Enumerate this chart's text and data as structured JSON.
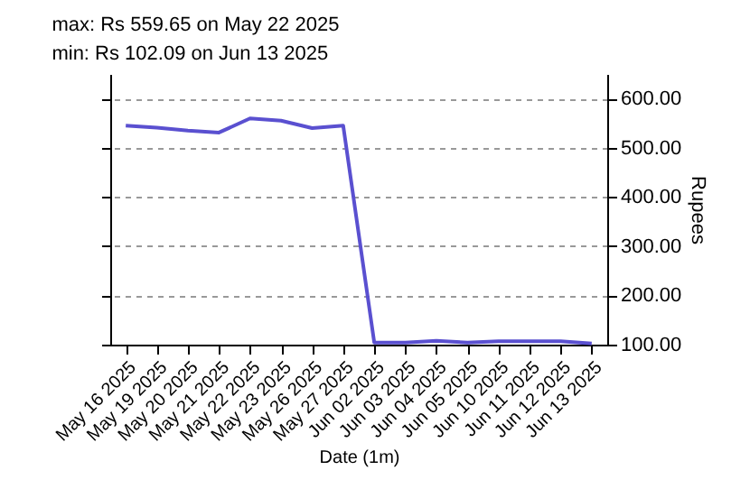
{
  "chart_data": {
    "type": "line",
    "title": "max: Rs 559.65 on May 22 2025",
    "subtitle": "min: Rs 102.09 on Jun 13 2025",
    "xlabel": "Date (1m)",
    "ylabel": "Rupees",
    "categories": [
      "May 16 2025",
      "May 19 2025",
      "May 20 2025",
      "May 21 2025",
      "May 22 2025",
      "May 23 2025",
      "May 26 2025",
      "May 27 2025",
      "Jun 02 2025",
      "Jun 03 2025",
      "Jun 04 2025",
      "Jun 05 2025",
      "Jun 10 2025",
      "Jun 11 2025",
      "Jun 12 2025",
      "Jun 13 2025"
    ],
    "series": [
      {
        "color": "#5a50d0",
        "values": [
          545,
          541,
          535,
          531,
          559.65,
          555,
          540,
          545,
          104,
          104,
          108,
          104,
          107,
          107,
          107,
          102.09
        ]
      }
    ],
    "ylim": [
      100,
      650
    ],
    "yticks": [
      {
        "value": 100,
        "label": "100.00"
      },
      {
        "value": 200,
        "label": "200.00"
      },
      {
        "value": 300,
        "label": "300.00"
      },
      {
        "value": 400,
        "label": "400.00"
      },
      {
        "value": 500,
        "label": "500.00"
      },
      {
        "value": 600,
        "label": "600.00"
      }
    ],
    "grid": "y",
    "line_style": "solid",
    "marker": "none"
  }
}
